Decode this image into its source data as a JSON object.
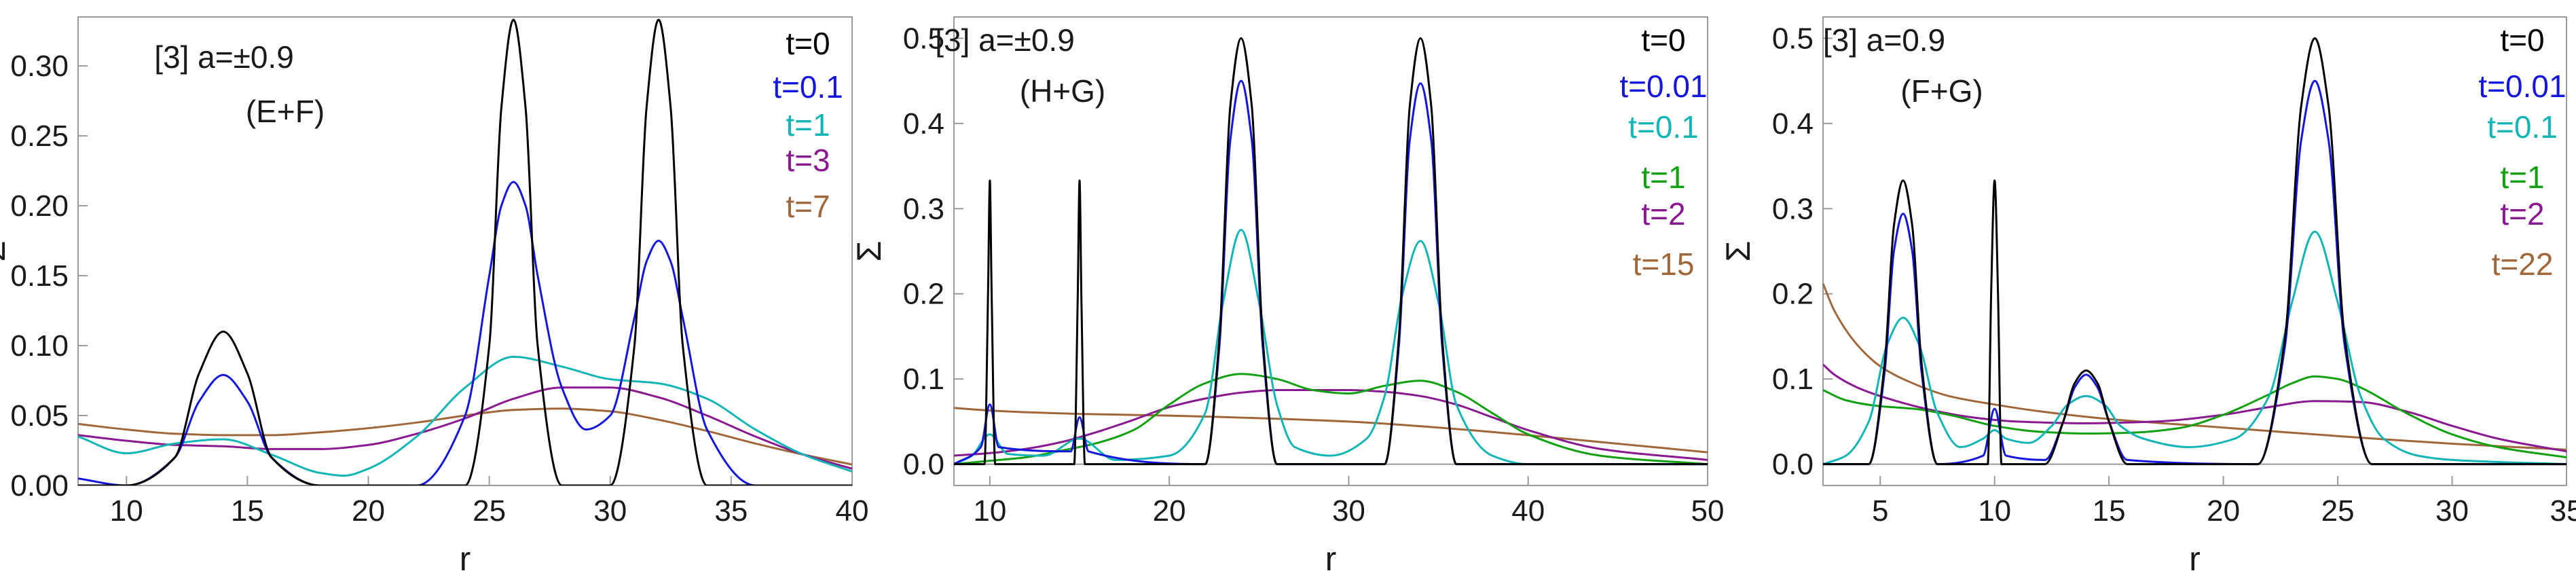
{
  "chart_data": [
    {
      "type": "line",
      "title": "",
      "annotation": [
        "[3] a=±0.9",
        "(E+F)"
      ],
      "xlabel": "r",
      "ylabel": "Σ",
      "xlim": [
        8,
        40
      ],
      "ylim": [
        0,
        0.335
      ],
      "xticks": [
        10,
        15,
        20,
        25,
        30,
        35,
        40
      ],
      "yticks": [
        0.0,
        0.05,
        0.1,
        0.15,
        0.2,
        0.25,
        0.3
      ],
      "ytick_labels": [
        "0.00",
        "0.05",
        "0.10",
        "0.15",
        "0.20",
        "0.25",
        "0.30"
      ],
      "grid": "horizontal at 0",
      "legend_position": "top-right",
      "series": [
        {
          "name": "t=0",
          "color": "#000000",
          "x": [
            8,
            10,
            12,
            13,
            14,
            15,
            16,
            18,
            20,
            22,
            24,
            25,
            25.5,
            26,
            26.5,
            27,
            28,
            29,
            30,
            31,
            31.5,
            32,
            32.5,
            33,
            34,
            36,
            38,
            40
          ],
          "y": [
            0.0,
            0.0,
            0.02,
            0.08,
            0.11,
            0.08,
            0.02,
            0.0,
            0.0,
            0.0,
            0.0,
            0.1,
            0.27,
            0.333,
            0.27,
            0.1,
            0.0,
            0.0,
            0.0,
            0.1,
            0.27,
            0.333,
            0.27,
            0.1,
            0.0,
            0.0,
            0.0,
            0.0
          ]
        },
        {
          "name": "t=0.1",
          "color": "#1515e0",
          "x": [
            8,
            10,
            12,
            13,
            14,
            15,
            16,
            18,
            20,
            22,
            24,
            25,
            25.5,
            26,
            26.5,
            27,
            28,
            29,
            30,
            31,
            31.5,
            32,
            32.5,
            33,
            34,
            36,
            38,
            40
          ],
          "y": [
            0.005,
            0.0,
            0.02,
            0.06,
            0.079,
            0.06,
            0.02,
            0.0,
            0.0,
            0.0,
            0.05,
            0.15,
            0.2,
            0.217,
            0.2,
            0.15,
            0.07,
            0.04,
            0.05,
            0.12,
            0.16,
            0.175,
            0.16,
            0.12,
            0.04,
            0.0,
            0.0,
            0.0
          ]
        },
        {
          "name": "t=1",
          "color": "#12b5b5",
          "x": [
            8,
            10,
            12,
            14,
            16,
            18,
            19,
            20,
            22,
            24,
            26,
            28,
            30,
            32,
            34,
            36,
            38,
            40
          ],
          "y": [
            0.035,
            0.023,
            0.03,
            0.033,
            0.022,
            0.009,
            0.007,
            0.012,
            0.035,
            0.07,
            0.092,
            0.085,
            0.076,
            0.073,
            0.062,
            0.04,
            0.022,
            0.01
          ]
        },
        {
          "name": "t=3",
          "color": "#8a1890",
          "x": [
            8,
            10,
            12,
            14,
            16,
            18,
            20,
            22,
            24,
            26,
            28,
            30,
            32,
            34,
            36,
            38,
            40
          ],
          "y": [
            0.036,
            0.032,
            0.029,
            0.028,
            0.026,
            0.026,
            0.029,
            0.037,
            0.048,
            0.062,
            0.07,
            0.07,
            0.063,
            0.05,
            0.035,
            0.022,
            0.012
          ]
        },
        {
          "name": "t=7",
          "color": "#a0683a",
          "x": [
            8,
            10,
            12,
            14,
            16,
            18,
            20,
            22,
            24,
            26,
            28,
            30,
            32,
            34,
            36,
            38,
            40
          ],
          "y": [
            0.044,
            0.04,
            0.037,
            0.036,
            0.036,
            0.038,
            0.041,
            0.045,
            0.05,
            0.054,
            0.055,
            0.053,
            0.047,
            0.039,
            0.03,
            0.022,
            0.015
          ]
        }
      ]
    },
    {
      "type": "line",
      "title": "",
      "annotation": [
        "[3] a=±0.9",
        "(H+G)"
      ],
      "xlabel": "r",
      "ylabel": "Σ",
      "xlim": [
        8,
        50
      ],
      "ylim": [
        -0.025,
        0.525
      ],
      "xticks": [
        10,
        20,
        30,
        40,
        50
      ],
      "yticks": [
        0.0,
        0.1,
        0.2,
        0.3,
        0.4,
        0.5
      ],
      "ytick_labels": [
        "0.0",
        "0.1",
        "0.2",
        "0.3",
        "0.4",
        "0.5"
      ],
      "grid": "horizontal at 0",
      "legend_position": "top-right",
      "series": [
        {
          "name": "t=0",
          "color": "#000000",
          "x": [
            8,
            9.7,
            9.9,
            10,
            10.1,
            10.3,
            14.7,
            14.9,
            15,
            15.1,
            15.3,
            22,
            22.8,
            23.4,
            24,
            24.6,
            25.2,
            26,
            32,
            32.8,
            33.4,
            34,
            34.6,
            35.2,
            36,
            40,
            50
          ],
          "y": [
            0.0,
            0.0,
            0.2,
            0.333,
            0.2,
            0.0,
            0.0,
            0.2,
            0.333,
            0.2,
            0.0,
            0.0,
            0.15,
            0.42,
            0.5,
            0.42,
            0.15,
            0.0,
            0.0,
            0.15,
            0.42,
            0.5,
            0.42,
            0.15,
            0.0,
            0.0,
            0.0
          ]
        },
        {
          "name": "t=0.01",
          "color": "#1515e0",
          "x": [
            8,
            9.5,
            10,
            10.5,
            14.5,
            15,
            15.5,
            22,
            22.8,
            23.4,
            24,
            24.6,
            25.2,
            26,
            32,
            32.8,
            33.4,
            34,
            34.6,
            35.2,
            36,
            40,
            50
          ],
          "y": [
            0.0,
            0.02,
            0.07,
            0.02,
            0.015,
            0.055,
            0.015,
            0.0,
            0.14,
            0.38,
            0.45,
            0.38,
            0.14,
            0.0,
            0.0,
            0.14,
            0.38,
            0.447,
            0.38,
            0.14,
            0.0,
            0.0,
            0.0
          ]
        },
        {
          "name": "t=0.1",
          "color": "#12b5b5",
          "x": [
            8,
            9,
            10,
            11,
            13,
            15,
            17,
            20,
            22,
            23,
            24,
            25,
            26,
            27,
            29,
            31,
            32,
            33,
            34,
            35,
            36,
            38,
            40,
            50
          ],
          "y": [
            0.0,
            0.01,
            0.035,
            0.012,
            0.01,
            0.03,
            0.005,
            0.01,
            0.06,
            0.19,
            0.275,
            0.19,
            0.07,
            0.02,
            0.01,
            0.03,
            0.08,
            0.2,
            0.262,
            0.19,
            0.07,
            0.01,
            0.0,
            0.0
          ]
        },
        {
          "name": "t=1",
          "color": "#10a010",
          "x": [
            8,
            10,
            12,
            14,
            16,
            18,
            20,
            22,
            24,
            26,
            28,
            30,
            32,
            34,
            36,
            38,
            40,
            44,
            50
          ],
          "y": [
            0.0,
            0.004,
            0.008,
            0.016,
            0.025,
            0.04,
            0.07,
            0.095,
            0.106,
            0.1,
            0.087,
            0.083,
            0.092,
            0.098,
            0.085,
            0.06,
            0.035,
            0.01,
            0.0
          ]
        },
        {
          "name": "t=2",
          "color": "#8a1890",
          "x": [
            8,
            10,
            12,
            14,
            16,
            18,
            20,
            22,
            24,
            26,
            28,
            30,
            32,
            34,
            36,
            38,
            40,
            44,
            50
          ],
          "y": [
            0.01,
            0.013,
            0.018,
            0.026,
            0.038,
            0.052,
            0.067,
            0.077,
            0.084,
            0.087,
            0.087,
            0.087,
            0.085,
            0.08,
            0.07,
            0.055,
            0.04,
            0.018,
            0.005
          ]
        },
        {
          "name": "t=15",
          "color": "#a0683a",
          "x": [
            8,
            10,
            15,
            20,
            25,
            30,
            35,
            40,
            45,
            50
          ],
          "y": [
            0.066,
            0.063,
            0.059,
            0.057,
            0.054,
            0.05,
            0.043,
            0.034,
            0.024,
            0.014
          ]
        }
      ]
    },
    {
      "type": "line",
      "title": "",
      "annotation": [
        "[3] a=0.9",
        "(F+G)"
      ],
      "xlabel": "r",
      "ylabel": "Σ",
      "xlim": [
        2.5,
        35
      ],
      "ylim": [
        -0.025,
        0.525
      ],
      "xticks": [
        5,
        10,
        15,
        20,
        25,
        30,
        35
      ],
      "yticks": [
        0.0,
        0.1,
        0.2,
        0.3,
        0.4,
        0.5
      ],
      "ytick_labels": [
        "0.0",
        "0.1",
        "0.2",
        "0.3",
        "0.4",
        "0.5"
      ],
      "grid": "horizontal at 0",
      "legend_position": "top-right",
      "series": [
        {
          "name": "t=0",
          "color": "#000000",
          "x": [
            2.5,
            4.5,
            5.2,
            5.6,
            6,
            6.4,
            6.8,
            7.5,
            9.7,
            9.85,
            10,
            10.15,
            10.3,
            12.2,
            13,
            13.5,
            14,
            14.5,
            15,
            15.8,
            21.5,
            22.7,
            23.4,
            24,
            24.6,
            25.3,
            26.5,
            30,
            35
          ],
          "y": [
            0.0,
            0.0,
            0.12,
            0.28,
            0.333,
            0.28,
            0.12,
            0.0,
            0.0,
            0.2,
            0.333,
            0.2,
            0.0,
            0.0,
            0.05,
            0.095,
            0.11,
            0.095,
            0.05,
            0.0,
            0.0,
            0.15,
            0.42,
            0.5,
            0.42,
            0.15,
            0.0,
            0.0,
            0.0
          ]
        },
        {
          "name": "t=0.01",
          "color": "#1515e0",
          "x": [
            2.5,
            4.5,
            5.2,
            5.6,
            6,
            6.4,
            6.8,
            7.5,
            9.5,
            10,
            10.5,
            12.2,
            13,
            13.5,
            14,
            14.5,
            15,
            15.8,
            21.5,
            22.7,
            23.4,
            24,
            24.6,
            25.3,
            26.5,
            30,
            35
          ],
          "y": [
            0.0,
            0.0,
            0.11,
            0.25,
            0.294,
            0.25,
            0.11,
            0.0,
            0.01,
            0.065,
            0.01,
            0.005,
            0.05,
            0.09,
            0.105,
            0.09,
            0.05,
            0.005,
            0.0,
            0.14,
            0.38,
            0.45,
            0.38,
            0.14,
            0.0,
            0.0,
            0.0
          ]
        },
        {
          "name": "t=0.1",
          "color": "#12b5b5",
          "x": [
            2.5,
            3.5,
            4.5,
            5.3,
            6,
            6.7,
            7.5,
            8.5,
            9.5,
            10,
            10.5,
            11.5,
            12.5,
            13.2,
            14,
            14.8,
            15.5,
            16.5,
            18.5,
            20.5,
            22,
            23,
            24,
            25,
            26,
            27,
            28.5,
            30,
            35
          ],
          "y": [
            0.0,
            0.01,
            0.05,
            0.14,
            0.172,
            0.14,
            0.06,
            0.02,
            0.03,
            0.04,
            0.03,
            0.025,
            0.045,
            0.07,
            0.08,
            0.07,
            0.045,
            0.03,
            0.02,
            0.03,
            0.08,
            0.19,
            0.273,
            0.19,
            0.08,
            0.03,
            0.01,
            0.005,
            0.0
          ]
        },
        {
          "name": "t=1",
          "color": "#10a010",
          "x": [
            2.5,
            3.5,
            5,
            6.5,
            8,
            10,
            12,
            14,
            16,
            18,
            20,
            22,
            23,
            24,
            25,
            26,
            28,
            30,
            32,
            35
          ],
          "y": [
            0.087,
            0.075,
            0.068,
            0.065,
            0.058,
            0.045,
            0.038,
            0.036,
            0.037,
            0.042,
            0.058,
            0.082,
            0.095,
            0.103,
            0.1,
            0.09,
            0.06,
            0.035,
            0.02,
            0.008
          ]
        },
        {
          "name": "t=2",
          "color": "#8a1890",
          "x": [
            2.5,
            3,
            4,
            5,
            7,
            9,
            11,
            14,
            17,
            20,
            22,
            24,
            26,
            28,
            30,
            32,
            35
          ],
          "y": [
            0.117,
            0.105,
            0.09,
            0.08,
            0.065,
            0.055,
            0.05,
            0.048,
            0.05,
            0.058,
            0.067,
            0.074,
            0.073,
            0.062,
            0.045,
            0.03,
            0.015
          ]
        },
        {
          "name": "t=22",
          "color": "#a0683a",
          "x": [
            2.5,
            3,
            4,
            5,
            6,
            8,
            10,
            12,
            15,
            20,
            25,
            30,
            35
          ],
          "y": [
            0.212,
            0.18,
            0.14,
            0.115,
            0.1,
            0.08,
            0.07,
            0.062,
            0.053,
            0.043,
            0.033,
            0.024,
            0.017
          ]
        }
      ]
    }
  ]
}
